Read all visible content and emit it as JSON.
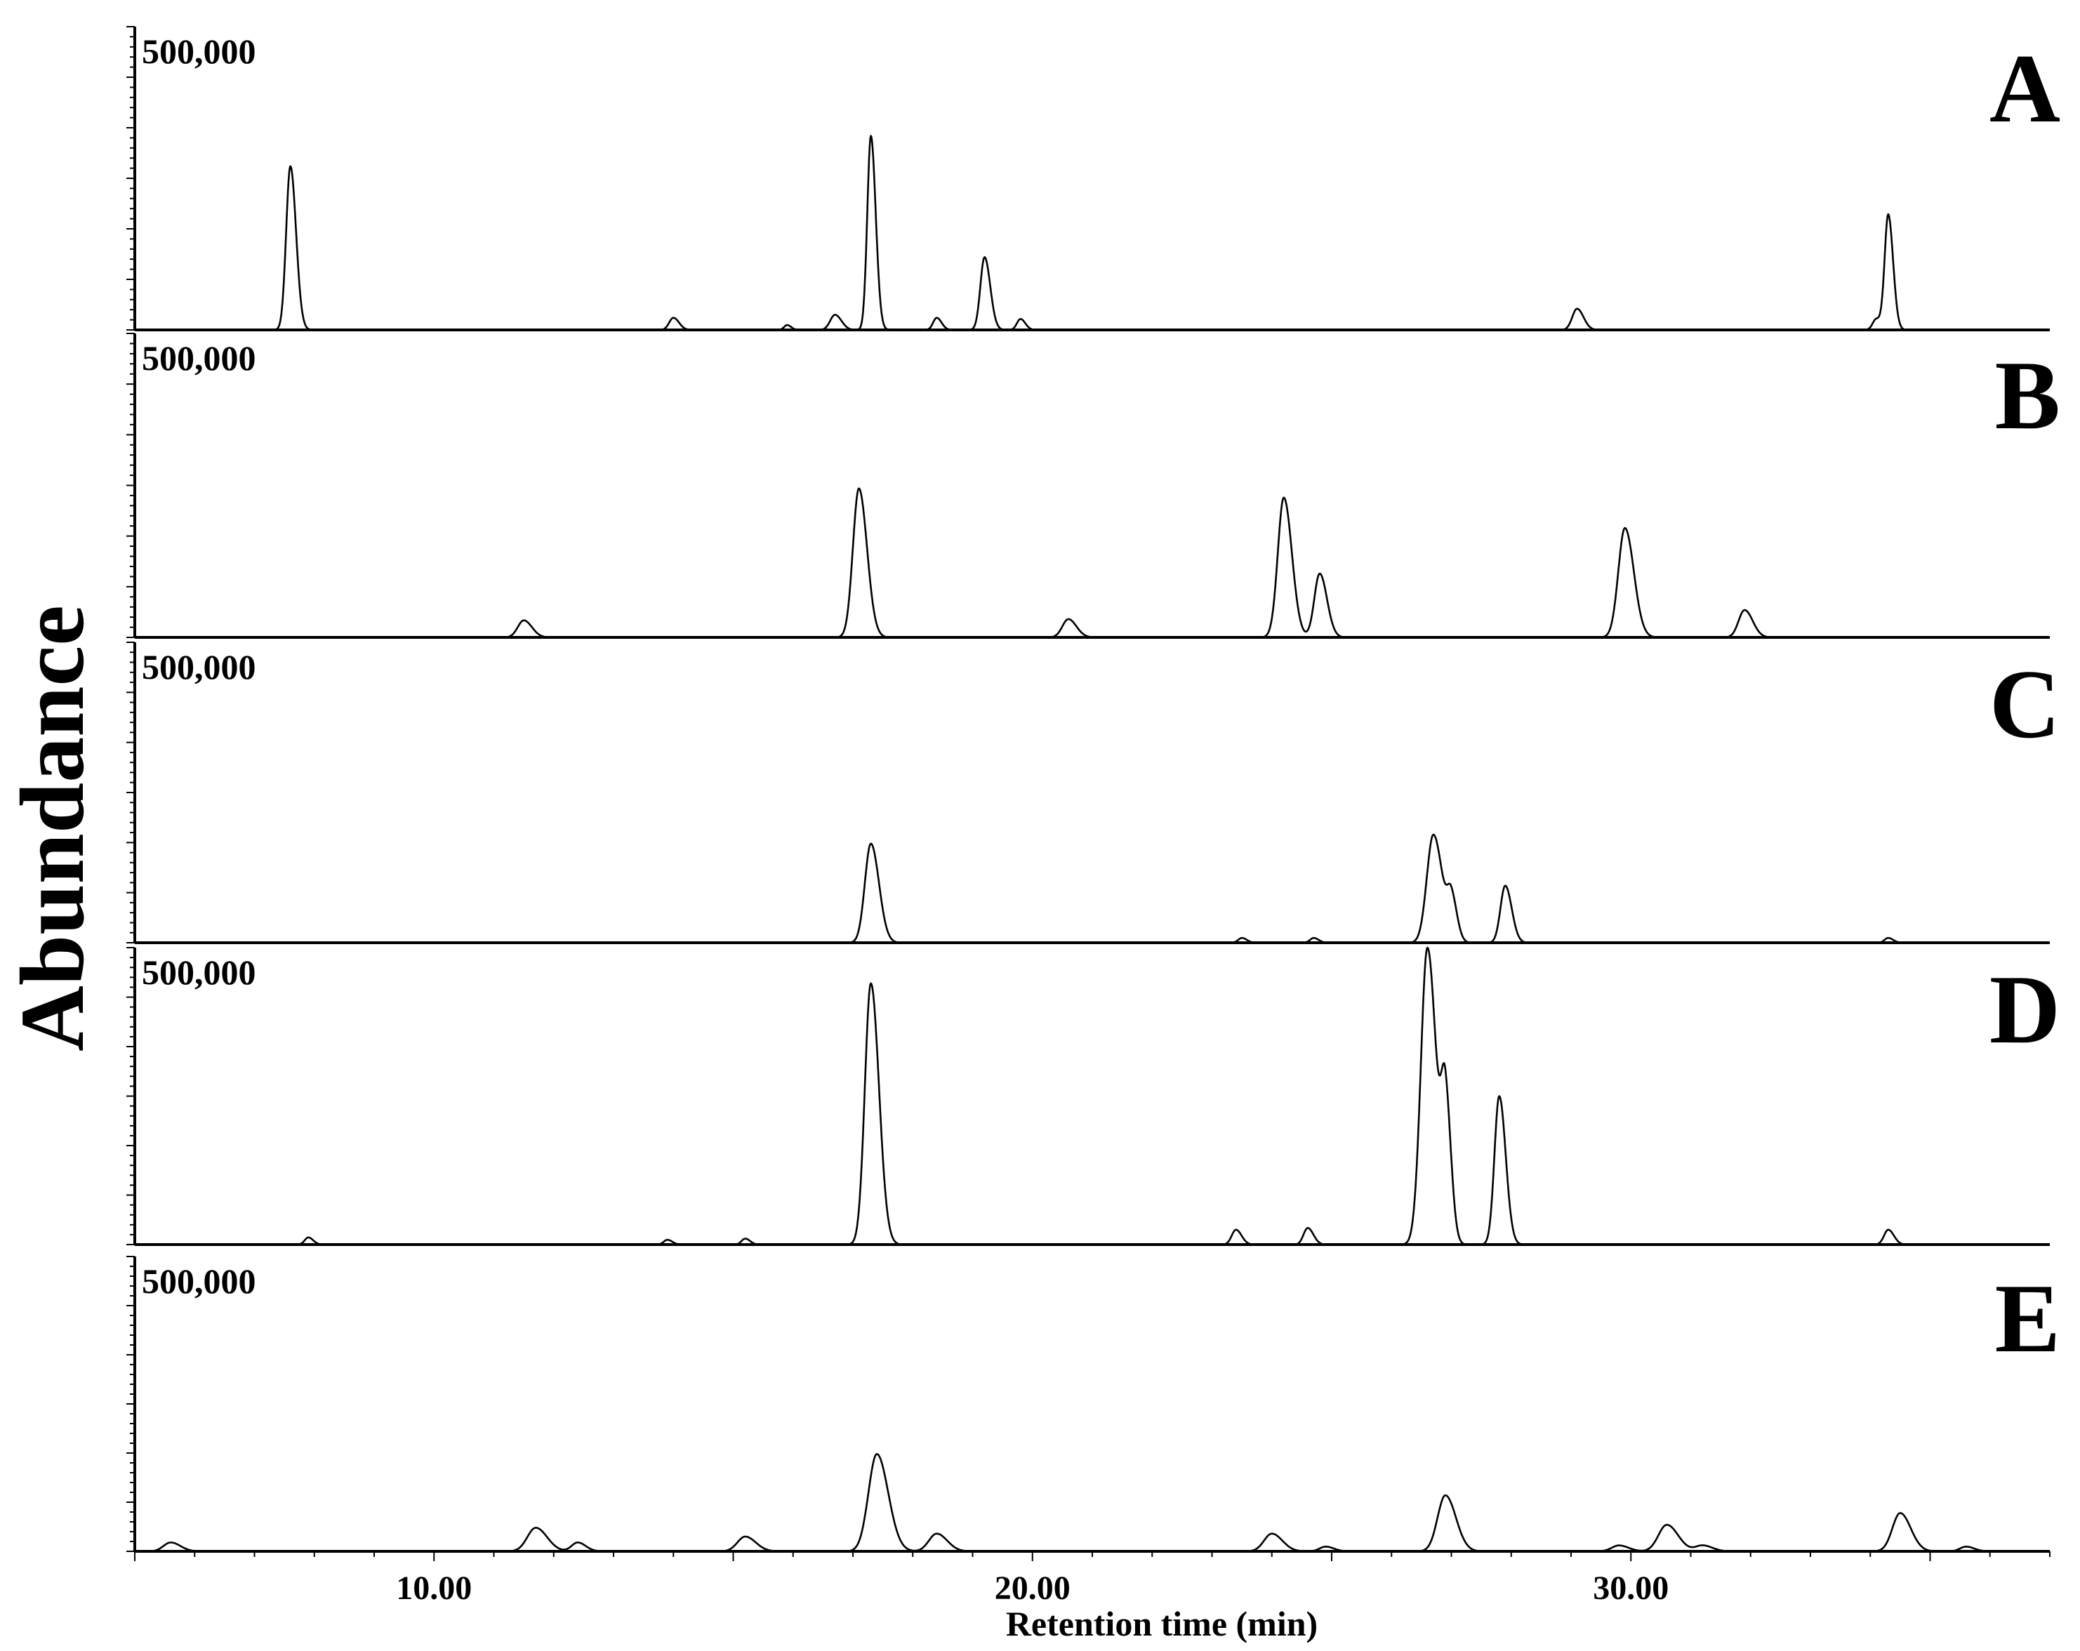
{
  "chart_data": {
    "type": "line",
    "title": "",
    "xlabel": "Retention time (min)",
    "ylabel": "Abundance",
    "xlim": [
      5.0,
      37.0
    ],
    "x_ticks": [
      "10.00",
      "20.00",
      "30.00"
    ],
    "x_tick_values": [
      10,
      20,
      30
    ],
    "panels": [
      {
        "label": "A",
        "ymax_label": "500,000",
        "ylim": [
          0,
          500000
        ],
        "peaks": [
          {
            "x": 7.6,
            "y": 270000,
            "w": 0.07
          },
          {
            "x": 14.0,
            "y": 20000,
            "w": 0.07
          },
          {
            "x": 15.9,
            "y": 8000,
            "w": 0.05
          },
          {
            "x": 16.7,
            "y": 25000,
            "w": 0.08
          },
          {
            "x": 17.3,
            "y": 320000,
            "w": 0.06
          },
          {
            "x": 18.4,
            "y": 20000,
            "w": 0.06
          },
          {
            "x": 19.2,
            "y": 120000,
            "w": 0.07
          },
          {
            "x": 19.8,
            "y": 18000,
            "w": 0.06
          },
          {
            "x": 29.1,
            "y": 35000,
            "w": 0.08
          },
          {
            "x": 34.1,
            "y": 18000,
            "w": 0.06
          },
          {
            "x": 34.3,
            "y": 190000,
            "w": 0.06
          }
        ]
      },
      {
        "label": "B",
        "ymax_label": "500,000",
        "ylim": [
          0,
          500000
        ],
        "peaks": [
          {
            "x": 11.5,
            "y": 28000,
            "w": 0.1
          },
          {
            "x": 17.1,
            "y": 245000,
            "w": 0.1
          },
          {
            "x": 20.6,
            "y": 30000,
            "w": 0.1
          },
          {
            "x": 24.2,
            "y": 230000,
            "w": 0.1
          },
          {
            "x": 24.8,
            "y": 105000,
            "w": 0.09
          },
          {
            "x": 29.9,
            "y": 180000,
            "w": 0.11
          },
          {
            "x": 31.9,
            "y": 45000,
            "w": 0.1
          }
        ]
      },
      {
        "label": "C",
        "ymax_label": "500,000",
        "ylim": [
          0,
          500000
        ],
        "peaks": [
          {
            "x": 17.3,
            "y": 165000,
            "w": 0.1
          },
          {
            "x": 23.5,
            "y": 8000,
            "w": 0.06
          },
          {
            "x": 24.7,
            "y": 8000,
            "w": 0.06
          },
          {
            "x": 26.7,
            "y": 180000,
            "w": 0.11
          },
          {
            "x": 27.0,
            "y": 70000,
            "w": 0.07
          },
          {
            "x": 27.9,
            "y": 95000,
            "w": 0.08
          },
          {
            "x": 34.3,
            "y": 8000,
            "w": 0.06
          }
        ]
      },
      {
        "label": "D",
        "ymax_label": "500,000",
        "ylim": [
          0,
          500000
        ],
        "peaks": [
          {
            "x": 7.9,
            "y": 12000,
            "w": 0.06
          },
          {
            "x": 13.9,
            "y": 8000,
            "w": 0.06
          },
          {
            "x": 15.2,
            "y": 10000,
            "w": 0.06
          },
          {
            "x": 17.3,
            "y": 440000,
            "w": 0.1
          },
          {
            "x": 23.4,
            "y": 25000,
            "w": 0.07
          },
          {
            "x": 24.6,
            "y": 28000,
            "w": 0.07
          },
          {
            "x": 26.6,
            "y": 500000,
            "w": 0.11
          },
          {
            "x": 26.9,
            "y": 230000,
            "w": 0.07
          },
          {
            "x": 27.8,
            "y": 250000,
            "w": 0.08
          },
          {
            "x": 34.3,
            "y": 25000,
            "w": 0.07
          }
        ]
      },
      {
        "label": "E",
        "ymax_label": "500,000",
        "ylim": [
          0,
          500000
        ],
        "peaks": [
          {
            "x": 5.6,
            "y": 15000,
            "w": 0.12
          },
          {
            "x": 11.7,
            "y": 40000,
            "w": 0.14
          },
          {
            "x": 12.4,
            "y": 15000,
            "w": 0.1
          },
          {
            "x": 15.2,
            "y": 25000,
            "w": 0.13
          },
          {
            "x": 17.4,
            "y": 165000,
            "w": 0.14
          },
          {
            "x": 18.4,
            "y": 30000,
            "w": 0.13
          },
          {
            "x": 24.0,
            "y": 30000,
            "w": 0.13
          },
          {
            "x": 24.9,
            "y": 8000,
            "w": 0.1
          },
          {
            "x": 26.9,
            "y": 95000,
            "w": 0.13
          },
          {
            "x": 29.8,
            "y": 10000,
            "w": 0.12
          },
          {
            "x": 30.6,
            "y": 45000,
            "w": 0.14
          },
          {
            "x": 31.2,
            "y": 10000,
            "w": 0.12
          },
          {
            "x": 34.5,
            "y": 65000,
            "w": 0.13
          },
          {
            "x": 35.6,
            "y": 8000,
            "w": 0.1
          }
        ]
      }
    ]
  }
}
